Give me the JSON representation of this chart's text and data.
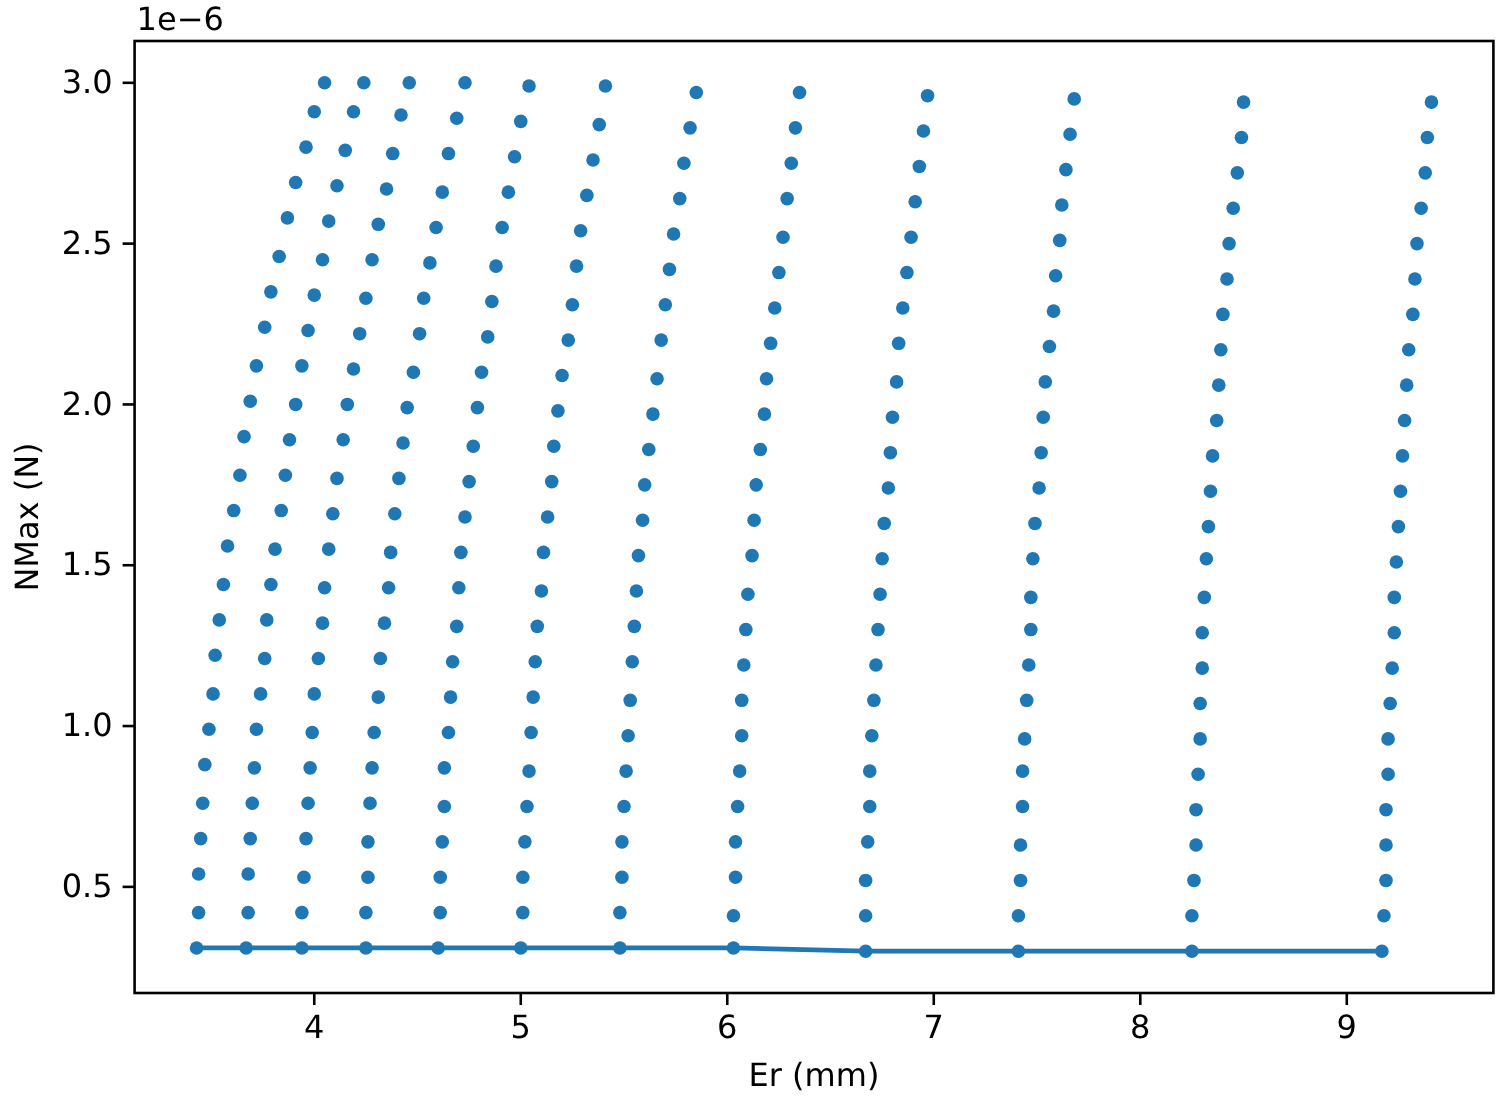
{
  "chart_data": {
    "type": "scatter",
    "xlabel": "Er (mm)",
    "ylabel": "NMax (N)",
    "annotations": [
      "1e−6"
    ],
    "xlim": [
      3.13,
      9.71
    ],
    "ylim": [
      0.17,
      3.13
    ],
    "xticks": [
      4,
      5,
      6,
      7,
      8,
      9
    ],
    "yticks": [
      {
        "value": 0.5,
        "label": "0.5"
      },
      {
        "value": 1.0,
        "label": "1.0"
      },
      {
        "value": 1.5,
        "label": "1.5"
      },
      {
        "value": 2.0,
        "label": "2.0"
      },
      {
        "value": 2.5,
        "label": "2.5"
      },
      {
        "value": 3.0,
        "label": "3.0"
      }
    ],
    "series": [
      {
        "color": "#1f77b4",
        "x": [
          4.05,
          4.0,
          3.96,
          3.91,
          3.87,
          3.83,
          3.79,
          3.76,
          3.72,
          3.69,
          3.66,
          3.64,
          3.61,
          3.58,
          3.56,
          3.54,
          3.52,
          3.51,
          3.49,
          3.47,
          3.46,
          3.45,
          3.44,
          3.44,
          3.43
        ],
        "values": [
          3.0,
          2.91,
          2.8,
          2.69,
          2.58,
          2.46,
          2.35,
          2.24,
          2.12,
          2.01,
          1.9,
          1.78,
          1.67,
          1.56,
          1.44,
          1.33,
          1.22,
          1.1,
          0.99,
          0.88,
          0.76,
          0.65,
          0.54,
          0.42,
          0.31
        ]
      },
      {
        "color": "#1f77b4",
        "x": [
          4.24,
          4.19,
          4.15,
          4.11,
          4.07,
          4.04,
          4.0,
          3.97,
          3.94,
          3.91,
          3.88,
          3.86,
          3.84,
          3.81,
          3.79,
          3.77,
          3.76,
          3.74,
          3.72,
          3.71,
          3.7,
          3.69,
          3.68,
          3.68,
          3.67
        ],
        "values": [
          3.0,
          2.91,
          2.79,
          2.68,
          2.57,
          2.45,
          2.34,
          2.23,
          2.12,
          2.0,
          1.89,
          1.78,
          1.67,
          1.55,
          1.44,
          1.33,
          1.21,
          1.1,
          0.99,
          0.87,
          0.76,
          0.65,
          0.54,
          0.42,
          0.31
        ]
      },
      {
        "color": "#1f77b4",
        "x": [
          4.46,
          4.42,
          4.38,
          4.35,
          4.31,
          4.28,
          4.25,
          4.22,
          4.19,
          4.16,
          4.14,
          4.11,
          4.09,
          4.07,
          4.05,
          4.04,
          4.02,
          4.0,
          3.99,
          3.98,
          3.97,
          3.96,
          3.95,
          3.94,
          3.94
        ],
        "values": [
          3.0,
          2.9,
          2.78,
          2.67,
          2.56,
          2.45,
          2.33,
          2.22,
          2.11,
          2.0,
          1.89,
          1.77,
          1.66,
          1.55,
          1.43,
          1.32,
          1.21,
          1.1,
          0.98,
          0.87,
          0.76,
          0.65,
          0.53,
          0.42,
          0.31
        ]
      },
      {
        "color": "#1f77b4",
        "x": [
          4.73,
          4.69,
          4.65,
          4.62,
          4.59,
          4.56,
          4.53,
          4.51,
          4.48,
          4.45,
          4.43,
          4.41,
          4.39,
          4.37,
          4.36,
          4.34,
          4.32,
          4.31,
          4.29,
          4.28,
          4.27,
          4.26,
          4.26,
          4.25,
          4.25
        ],
        "values": [
          3.0,
          2.89,
          2.78,
          2.66,
          2.55,
          2.44,
          2.33,
          2.22,
          2.1,
          1.99,
          1.88,
          1.77,
          1.66,
          1.54,
          1.43,
          1.32,
          1.21,
          1.09,
          0.98,
          0.87,
          0.76,
          0.64,
          0.53,
          0.42,
          0.31
        ]
      },
      {
        "color": "#1f77b4",
        "x": [
          5.04,
          5.0,
          4.97,
          4.94,
          4.91,
          4.88,
          4.86,
          4.84,
          4.81,
          4.79,
          4.77,
          4.75,
          4.73,
          4.71,
          4.7,
          4.69,
          4.67,
          4.66,
          4.65,
          4.63,
          4.63,
          4.62,
          4.61,
          4.61,
          4.6
        ],
        "values": [
          2.99,
          2.88,
          2.77,
          2.66,
          2.55,
          2.43,
          2.32,
          2.21,
          2.1,
          1.99,
          1.87,
          1.76,
          1.65,
          1.54,
          1.43,
          1.31,
          1.2,
          1.09,
          0.98,
          0.87,
          0.75,
          0.64,
          0.53,
          0.42,
          0.31
        ]
      },
      {
        "color": "#1f77b4",
        "x": [
          5.41,
          5.38,
          5.35,
          5.32,
          5.29,
          5.27,
          5.25,
          5.23,
          5.2,
          5.18,
          5.16,
          5.15,
          5.13,
          5.11,
          5.1,
          5.08,
          5.07,
          5.06,
          5.05,
          5.04,
          5.03,
          5.02,
          5.01,
          5.01,
          5.0
        ],
        "values": [
          2.99,
          2.87,
          2.76,
          2.65,
          2.54,
          2.43,
          2.31,
          2.2,
          2.09,
          1.98,
          1.87,
          1.76,
          1.65,
          1.54,
          1.42,
          1.31,
          1.2,
          1.09,
          0.98,
          0.86,
          0.75,
          0.64,
          0.53,
          0.42,
          0.31
        ]
      },
      {
        "color": "#1f77b4",
        "x": [
          5.85,
          5.82,
          5.79,
          5.77,
          5.74,
          5.72,
          5.7,
          5.68,
          5.66,
          5.64,
          5.62,
          5.6,
          5.59,
          5.57,
          5.56,
          5.55,
          5.54,
          5.53,
          5.52,
          5.51,
          5.5,
          5.49,
          5.49,
          5.48,
          5.48
        ],
        "values": [
          2.97,
          2.86,
          2.75,
          2.64,
          2.53,
          2.42,
          2.31,
          2.2,
          2.08,
          1.97,
          1.86,
          1.75,
          1.64,
          1.53,
          1.42,
          1.31,
          1.2,
          1.08,
          0.97,
          0.86,
          0.75,
          0.64,
          0.53,
          0.42,
          0.31
        ]
      },
      {
        "color": "#1f77b4",
        "x": [
          6.35,
          6.33,
          6.31,
          6.29,
          6.27,
          6.25,
          6.23,
          6.21,
          6.19,
          6.18,
          6.16,
          6.14,
          6.13,
          6.12,
          6.1,
          6.09,
          6.08,
          6.07,
          6.07,
          6.06,
          6.05,
          6.04,
          6.04,
          6.03,
          6.03
        ],
        "values": [
          2.97,
          2.86,
          2.75,
          2.64,
          2.52,
          2.41,
          2.3,
          2.19,
          2.08,
          1.97,
          1.86,
          1.75,
          1.64,
          1.53,
          1.41,
          1.3,
          1.19,
          1.08,
          0.97,
          0.86,
          0.75,
          0.64,
          0.53,
          0.41,
          0.31
        ]
      },
      {
        "color": "#1f77b4",
        "x": [
          6.97,
          6.95,
          6.93,
          6.91,
          6.89,
          6.87,
          6.85,
          6.83,
          6.82,
          6.8,
          6.79,
          6.78,
          6.76,
          6.75,
          6.74,
          6.73,
          6.72,
          6.71,
          6.7,
          6.69,
          6.69,
          6.68,
          6.67,
          6.67,
          6.67
        ],
        "values": [
          2.96,
          2.85,
          2.74,
          2.63,
          2.52,
          2.41,
          2.3,
          2.19,
          2.07,
          1.96,
          1.85,
          1.74,
          1.63,
          1.52,
          1.41,
          1.3,
          1.19,
          1.08,
          0.97,
          0.86,
          0.75,
          0.64,
          0.52,
          0.41,
          0.3
        ]
      },
      {
        "color": "#1f77b4",
        "x": [
          7.68,
          7.66,
          7.64,
          7.62,
          7.61,
          7.59,
          7.58,
          7.56,
          7.54,
          7.53,
          7.52,
          7.51,
          7.49,
          7.48,
          7.47,
          7.47,
          7.46,
          7.45,
          7.44,
          7.43,
          7.43,
          7.42,
          7.42,
          7.41,
          7.41
        ],
        "values": [
          2.95,
          2.84,
          2.73,
          2.62,
          2.51,
          2.4,
          2.29,
          2.18,
          2.07,
          1.96,
          1.85,
          1.74,
          1.63,
          1.52,
          1.4,
          1.3,
          1.19,
          1.08,
          0.96,
          0.86,
          0.75,
          0.63,
          0.52,
          0.41,
          0.3
        ]
      },
      {
        "color": "#1f77b4",
        "x": [
          8.5,
          8.49,
          8.47,
          8.45,
          8.43,
          8.42,
          8.4,
          8.39,
          8.38,
          8.37,
          8.35,
          8.34,
          8.33,
          8.32,
          8.31,
          8.3,
          8.3,
          8.29,
          8.29,
          8.28,
          8.27,
          8.27,
          8.26,
          8.25,
          8.25
        ],
        "values": [
          2.94,
          2.83,
          2.72,
          2.61,
          2.5,
          2.39,
          2.28,
          2.17,
          2.06,
          1.95,
          1.84,
          1.73,
          1.62,
          1.52,
          1.4,
          1.29,
          1.18,
          1.07,
          0.96,
          0.85,
          0.74,
          0.63,
          0.52,
          0.41,
          0.3
        ]
      },
      {
        "color": "#1f77b4",
        "x": [
          9.41,
          9.39,
          9.38,
          9.36,
          9.34,
          9.33,
          9.32,
          9.3,
          9.29,
          9.28,
          9.27,
          9.26,
          9.25,
          9.24,
          9.23,
          9.23,
          9.22,
          9.21,
          9.2,
          9.2,
          9.19,
          9.19,
          9.19,
          9.18,
          9.17
        ],
        "values": [
          2.94,
          2.83,
          2.72,
          2.61,
          2.5,
          2.39,
          2.28,
          2.17,
          2.06,
          1.95,
          1.84,
          1.73,
          1.62,
          1.51,
          1.4,
          1.29,
          1.18,
          1.07,
          0.96,
          0.85,
          0.74,
          0.63,
          0.52,
          0.41,
          0.3
        ]
      },
      {
        "type": "line",
        "color": "#1f77b4",
        "x": [
          3.43,
          3.67,
          3.94,
          4.25,
          4.6,
          5.0,
          5.48,
          6.03,
          6.67,
          7.41,
          8.25,
          9.17
        ],
        "values": [
          0.31,
          0.31,
          0.31,
          0.31,
          0.31,
          0.31,
          0.31,
          0.31,
          0.3,
          0.3,
          0.3,
          0.3
        ]
      }
    ]
  }
}
